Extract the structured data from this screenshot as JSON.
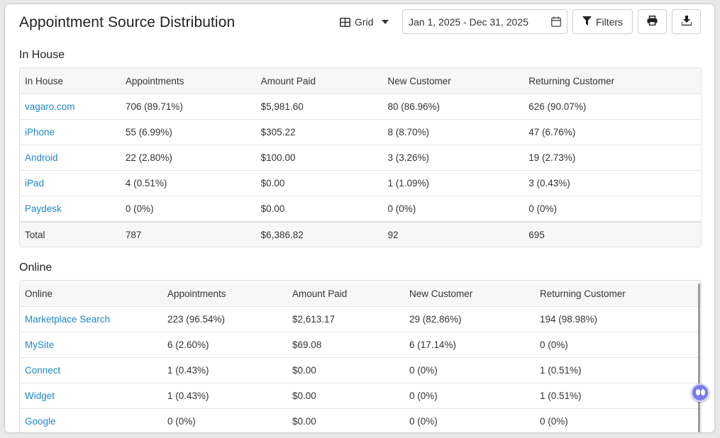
{
  "header": {
    "title": "Appointment Source Distribution",
    "view_label": "Grid",
    "date_range": "Jan 1, 2025 - Dec 31, 2025",
    "filters_label": "Filters"
  },
  "in_house": {
    "section_title": "In House",
    "columns": [
      "In House",
      "Appointments",
      "Amount Paid",
      "New Customer",
      "Returning Customer"
    ],
    "rows": [
      [
        "vagaro.com",
        "706 (89.71%)",
        "$5,981.60",
        "80 (86.96%)",
        "626 (90.07%)"
      ],
      [
        "iPhone",
        "55 (6.99%)",
        "$305.22",
        "8 (8.70%)",
        "47 (6.76%)"
      ],
      [
        "Android",
        "22 (2.80%)",
        "$100.00",
        "3 (3.26%)",
        "19 (2.73%)"
      ],
      [
        "iPad",
        "4 (0.51%)",
        "$0.00",
        "1 (1.09%)",
        "3 (0.43%)"
      ],
      [
        "Paydesk",
        "0 (0%)",
        "$0.00",
        "0 (0%)",
        "0 (0%)"
      ]
    ],
    "total": [
      "Total",
      "787",
      "$6,386.82",
      "92",
      "695"
    ]
  },
  "online": {
    "section_title": "Online",
    "columns": [
      "Online",
      "Appointments",
      "Amount Paid",
      "New Customer",
      "Returning Customer"
    ],
    "rows": [
      [
        "Marketplace Search",
        "223 (96.54%)",
        "$2,613.17",
        "29 (82.86%)",
        "194 (98.98%)"
      ],
      [
        "MySite",
        "6 (2.60%)",
        "$69.08",
        "6 (17.14%)",
        "0 (0%)"
      ],
      [
        "Connect",
        "1 (0.43%)",
        "$0.00",
        "0 (0%)",
        "1 (0.51%)"
      ],
      [
        "Widget",
        "1 (0.43%)",
        "$0.00",
        "0 (0%)",
        "1 (0.51%)"
      ],
      [
        "Google",
        "0 (0%)",
        "$0.00",
        "0 (0%)",
        "0 (0%)"
      ]
    ]
  },
  "icons": {
    "grid": "grid-icon",
    "dropdown": "caret-down-icon",
    "calendar": "calendar-icon",
    "filter": "filter-icon",
    "print": "printer-icon",
    "download": "download-icon",
    "assistant": "chat-assistant-icon"
  },
  "colors": {
    "link": "#1f88c7",
    "header_bg": "#f7f7f7",
    "assistant": "#7b7bea"
  }
}
